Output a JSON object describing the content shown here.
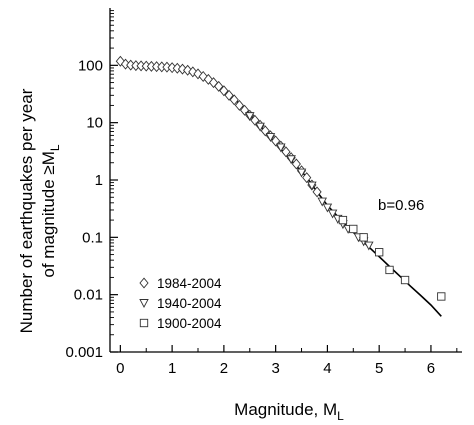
{
  "chart_data": {
    "type": "scatter",
    "title": "",
    "xlabel": "Magnitude, M",
    "xlabel_sub": "L",
    "ylabel_line1": "Number of earthquakes per year",
    "ylabel_line2": "of magnitude ≥M",
    "ylabel_sub": "L",
    "xlim": [
      -0.2,
      6.6
    ],
    "ylim": [
      0.001,
      1000
    ],
    "y_scale": "log",
    "x_ticks": [
      0,
      1,
      2,
      3,
      4,
      5,
      6
    ],
    "x_tick_labels": [
      "0",
      "1",
      "2",
      "3",
      "4",
      "5",
      "6"
    ],
    "y_ticks": [
      0.001,
      0.01,
      0.1,
      1,
      10,
      100
    ],
    "y_tick_labels": [
      "0.001",
      "0.01",
      "0.1",
      "1",
      "10",
      "100"
    ],
    "grid": false,
    "legend_position": "bottom-left",
    "annotation": "b=0.96",
    "series": [
      {
        "name": "1984-2004",
        "marker": "diamond",
        "points": [
          [
            0.0,
            118
          ],
          [
            0.1,
            105
          ],
          [
            0.2,
            101
          ],
          [
            0.3,
            99
          ],
          [
            0.4,
            98
          ],
          [
            0.5,
            97
          ],
          [
            0.6,
            96
          ],
          [
            0.7,
            95
          ],
          [
            0.8,
            94
          ],
          [
            0.9,
            93
          ],
          [
            1.0,
            91
          ],
          [
            1.1,
            89
          ],
          [
            1.2,
            86
          ],
          [
            1.3,
            82
          ],
          [
            1.4,
            77
          ],
          [
            1.5,
            71
          ],
          [
            1.6,
            64
          ],
          [
            1.7,
            57
          ],
          [
            1.8,
            50
          ],
          [
            1.9,
            43
          ],
          [
            2.0,
            36
          ],
          [
            2.1,
            30
          ],
          [
            2.2,
            25
          ],
          [
            2.3,
            20
          ],
          [
            2.4,
            16.5
          ],
          [
            2.5,
            13.5
          ],
          [
            2.6,
            11
          ],
          [
            2.7,
            9
          ],
          [
            2.8,
            7.2
          ],
          [
            2.9,
            5.9
          ],
          [
            3.0,
            4.8
          ],
          [
            3.1,
            3.9
          ],
          [
            3.2,
            3.1
          ],
          [
            3.3,
            2.45
          ],
          [
            3.4,
            1.9
          ],
          [
            3.5,
            1.45
          ],
          [
            3.6,
            1.1
          ],
          [
            3.7,
            0.82
          ],
          [
            3.8,
            0.62
          ]
        ]
      },
      {
        "name": "1940-2004",
        "marker": "triangle-down",
        "points": [
          [
            2.5,
            13
          ],
          [
            2.7,
            8.5
          ],
          [
            2.9,
            5.6
          ],
          [
            3.1,
            3.7
          ],
          [
            3.3,
            2.3
          ],
          [
            3.5,
            1.35
          ],
          [
            3.7,
            0.8
          ],
          [
            3.9,
            0.42
          ],
          [
            4.0,
            0.33
          ],
          [
            4.1,
            0.26
          ],
          [
            4.2,
            0.21
          ],
          [
            4.3,
            0.17
          ],
          [
            4.4,
            0.14
          ],
          [
            4.6,
            0.1
          ],
          [
            4.7,
            0.085
          ],
          [
            4.8,
            0.072
          ]
        ]
      },
      {
        "name": "1900-2004",
        "marker": "square",
        "points": [
          [
            4.3,
            0.2
          ],
          [
            4.5,
            0.14
          ],
          [
            4.7,
            0.1
          ],
          [
            5.0,
            0.055
          ],
          [
            5.2,
            0.027
          ],
          [
            5.5,
            0.018
          ],
          [
            6.2,
            0.0093
          ]
        ]
      }
    ],
    "fit_line": {
      "points": [
        [
          2.0,
          38
        ],
        [
          2.2,
          26
        ],
        [
          2.4,
          17.5
        ],
        [
          2.6,
          11.2
        ],
        [
          2.8,
          7.0
        ],
        [
          3.0,
          4.4
        ],
        [
          3.2,
          2.75
        ],
        [
          3.4,
          1.75
        ],
        [
          3.6,
          1.12
        ],
        [
          3.8,
          0.62
        ],
        [
          4.0,
          0.36
        ],
        [
          4.2,
          0.23
        ],
        [
          4.4,
          0.15
        ],
        [
          4.6,
          0.1
        ],
        [
          4.8,
          0.068
        ],
        [
          5.0,
          0.046
        ],
        [
          5.2,
          0.031
        ],
        [
          5.4,
          0.021
        ],
        [
          5.6,
          0.0142
        ],
        [
          5.8,
          0.0097
        ],
        [
          6.0,
          0.0066
        ],
        [
          6.2,
          0.0042
        ]
      ]
    }
  }
}
